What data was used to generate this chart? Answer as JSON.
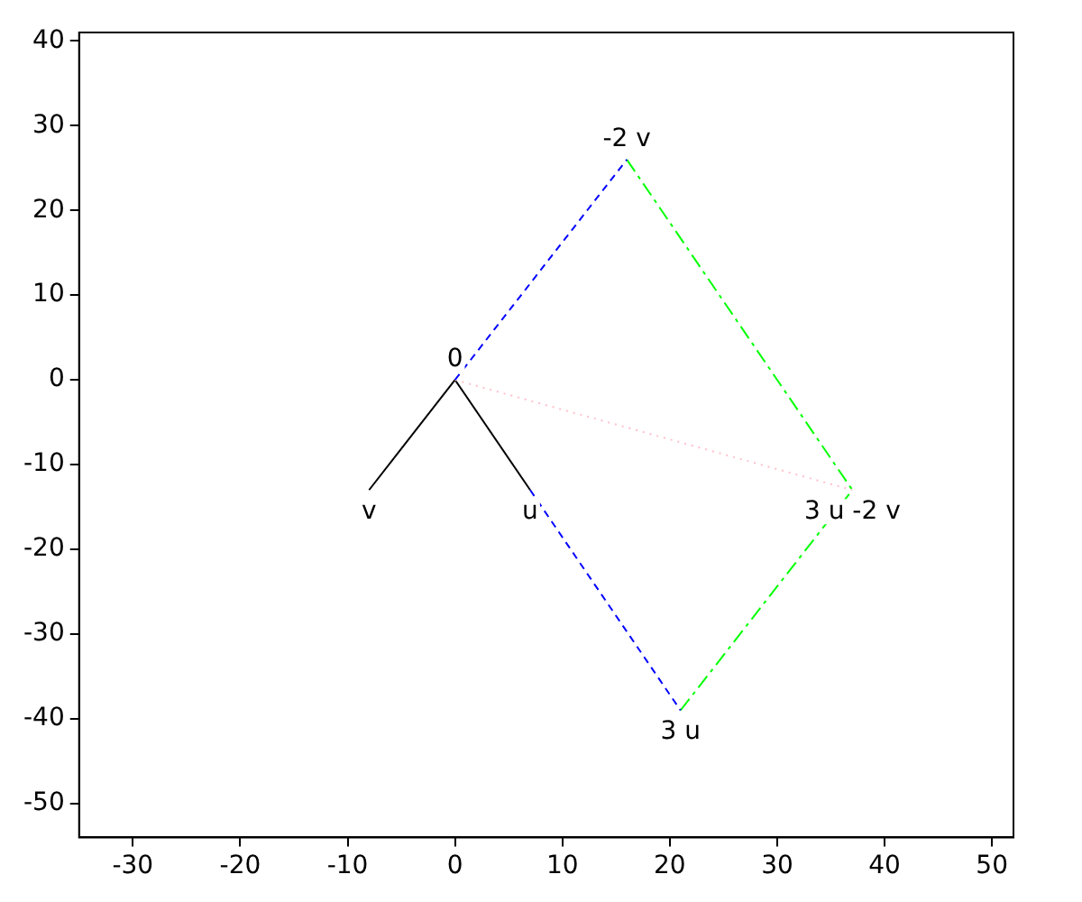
{
  "chart_data": {
    "type": "line",
    "xlim": [
      -35,
      52
    ],
    "ylim": [
      -54,
      41
    ],
    "xticks": [
      -30,
      -20,
      -10,
      0,
      10,
      20,
      30,
      40,
      50
    ],
    "yticks": [
      -50,
      -40,
      -30,
      -20,
      -10,
      0,
      10,
      20,
      30,
      40
    ],
    "grid": false,
    "legend": false,
    "marker": "none",
    "series": [
      {
        "color": "#0000ff",
        "line_style": "dashed",
        "x": [
          0,
          16
        ],
        "values": [
          0,
          26
        ]
      },
      {
        "color": "#0000ff",
        "line_style": "dashed",
        "x": [
          7,
          21
        ],
        "values": [
          -13,
          -39
        ]
      },
      {
        "color": "#00ff00",
        "line_style": "dashdot",
        "x": [
          16,
          37
        ],
        "values": [
          26,
          -13
        ]
      },
      {
        "color": "#00ff00",
        "line_style": "dashdot",
        "x": [
          21,
          37
        ],
        "values": [
          -39,
          -13
        ]
      },
      {
        "color": "#ffc0cb",
        "line_style": "dotted",
        "x": [
          0,
          37
        ],
        "values": [
          0,
          -13
        ]
      },
      {
        "color": "#000000",
        "line_style": "solid",
        "x": [
          0,
          7
        ],
        "values": [
          0,
          -13
        ]
      },
      {
        "color": "#000000",
        "line_style": "solid",
        "x": [
          0,
          -8
        ],
        "values": [
          0,
          -13
        ]
      }
    ],
    "annotations": [
      {
        "text": "0",
        "x": 0,
        "y": 0
      },
      {
        "text": "u",
        "x": 7,
        "y": -13
      },
      {
        "text": "v",
        "x": -8,
        "y": -13
      },
      {
        "text": "-2 v",
        "x": 16,
        "y": 26
      },
      {
        "text": "3 u",
        "x": 21,
        "y": -39
      },
      {
        "text": "3 u -2 v",
        "x": 37,
        "y": -13
      }
    ]
  }
}
